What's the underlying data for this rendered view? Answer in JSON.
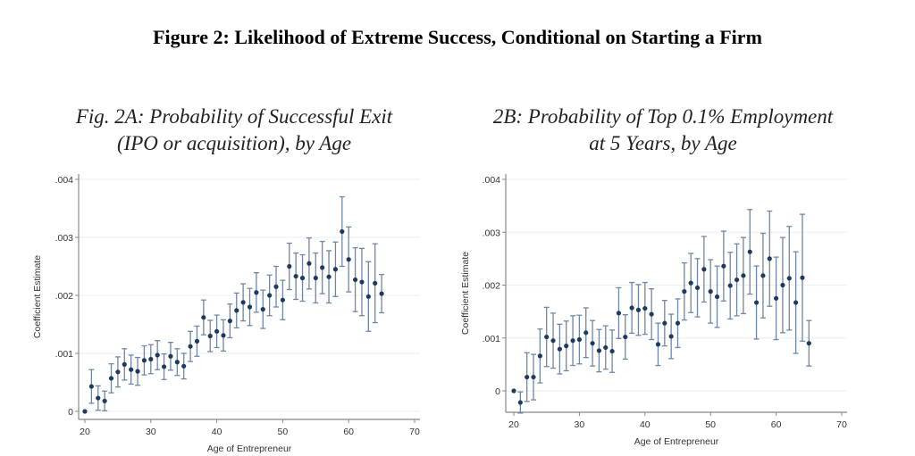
{
  "figure_title": "Figure 2: Likelihood of Extreme Success, Conditional on Starting a Firm",
  "colors": {
    "marker": "#1f3a5f",
    "errorbar": "#6f87a6",
    "grid": "#eef0f2",
    "axis": "#888888"
  },
  "chart_data": [
    {
      "type": "scatter",
      "title_lines": [
        "Fig. 2A: Probability of Successful Exit",
        "(IPO or acquisition), by Age"
      ],
      "xlabel": "Age of Entrepreneur",
      "ylabel": "Coefficient Estimate",
      "xlim": [
        20,
        70
      ],
      "ylim": [
        0,
        0.004
      ],
      "xticks": [
        "20",
        "30",
        "40",
        "50",
        "60",
        "70"
      ],
      "yticks": [
        "0",
        ".001",
        ".002",
        ".003",
        ".004"
      ],
      "grid": true,
      "error_bars": true,
      "x": [
        20,
        21,
        22,
        23,
        24,
        25,
        26,
        27,
        28,
        29,
        30,
        31,
        32,
        33,
        34,
        35,
        36,
        37,
        38,
        39,
        40,
        41,
        42,
        43,
        44,
        45,
        46,
        47,
        48,
        49,
        50,
        51,
        52,
        53,
        54,
        55,
        56,
        57,
        58,
        59,
        60,
        61,
        62,
        63,
        64,
        65
      ],
      "y": [
        0,
        0.00043,
        0.00023,
        0.00018,
        0.00057,
        0.00068,
        0.00081,
        0.00072,
        0.00069,
        0.00088,
        0.0009,
        0.00097,
        0.00077,
        0.00095,
        0.00085,
        0.00078,
        0.00112,
        0.00121,
        0.00162,
        0.0013,
        0.00138,
        0.00131,
        0.00156,
        0.00174,
        0.00188,
        0.0018,
        0.00205,
        0.00176,
        0.002,
        0.00215,
        0.00192,
        0.0025,
        0.00233,
        0.0023,
        0.00255,
        0.0023,
        0.00248,
        0.00232,
        0.00245,
        0.0031,
        0.00262,
        0.00227,
        0.00223,
        0.00198,
        0.00221,
        0.00203
      ],
      "ci_half_width": [
        0,
        0.00029,
        0.00021,
        0.00017,
        0.00025,
        0.00026,
        0.00027,
        0.00025,
        0.00024,
        0.00025,
        0.00025,
        0.00025,
        0.00022,
        0.00024,
        0.00023,
        0.00022,
        0.00026,
        0.00026,
        0.0003,
        0.00027,
        0.00028,
        0.00027,
        0.00029,
        0.0003,
        0.00032,
        0.00032,
        0.00034,
        0.00033,
        0.00035,
        0.00035,
        0.00034,
        0.0004,
        0.0004,
        0.0004,
        0.00044,
        0.00043,
        0.00045,
        0.00045,
        0.00047,
        0.0006,
        0.00056,
        0.00055,
        0.00058,
        0.0006,
        0.00068,
        0.00033
      ]
    },
    {
      "type": "scatter",
      "title_lines": [
        "2B: Probability of Top 0.1% Employment",
        "at 5 Years, by Age"
      ],
      "xlabel": "Age of Entrepreneur",
      "ylabel": "Coefficient Estimate",
      "xlim": [
        20,
        70
      ],
      "ylim": [
        -0.0004,
        0.004
      ],
      "xticks": [
        "20",
        "30",
        "40",
        "50",
        "60",
        "70"
      ],
      "yticks": [
        "0",
        ".001",
        ".002",
        ".003",
        ".004"
      ],
      "grid": true,
      "error_bars": true,
      "x": [
        20,
        21,
        22,
        23,
        24,
        25,
        26,
        27,
        28,
        29,
        30,
        31,
        32,
        33,
        34,
        35,
        36,
        37,
        38,
        39,
        40,
        41,
        42,
        43,
        44,
        45,
        46,
        47,
        48,
        49,
        50,
        51,
        52,
        53,
        54,
        55,
        56,
        57,
        58,
        59,
        60,
        61,
        62,
        63,
        64,
        65
      ],
      "y": [
        0,
        -0.00022,
        0.00026,
        0.00026,
        0.00066,
        0.00102,
        0.00095,
        0.00079,
        0.00085,
        0.00095,
        0.00097,
        0.0011,
        0.0009,
        0.00076,
        0.00082,
        0.00075,
        0.00147,
        0.00102,
        0.00157,
        0.00153,
        0.00156,
        0.00145,
        0.00088,
        0.00128,
        0.00103,
        0.00128,
        0.00188,
        0.00204,
        0.00195,
        0.0023,
        0.00188,
        0.00178,
        0.00236,
        0.00199,
        0.0021,
        0.00218,
        0.00263,
        0.00167,
        0.00218,
        0.0025,
        0.00175,
        0.002,
        0.00213,
        0.00167,
        0.00214,
        0.0009
      ],
      "ci_half_width": [
        0,
        0.0002,
        0.00046,
        0.00043,
        0.00051,
        0.00056,
        0.00052,
        0.00047,
        0.00047,
        0.00047,
        0.00046,
        0.00047,
        0.00043,
        0.0004,
        0.00041,
        0.0004,
        0.00048,
        0.00042,
        0.00048,
        0.00048,
        0.00049,
        0.00048,
        0.0004,
        0.00043,
        0.00042,
        0.00046,
        0.00054,
        0.00056,
        0.00055,
        0.00062,
        0.0006,
        0.00058,
        0.00066,
        0.00063,
        0.00068,
        0.00072,
        0.0008,
        0.00069,
        0.0008,
        0.0009,
        0.00078,
        0.0009,
        0.00098,
        0.00096,
        0.0012,
        0.00043
      ]
    }
  ]
}
